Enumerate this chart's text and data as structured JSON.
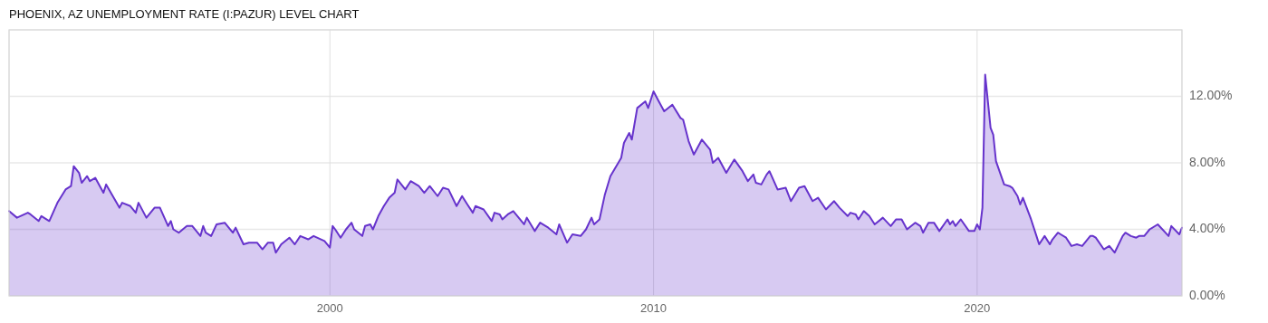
{
  "chart_data": {
    "type": "area",
    "title": "PHOENIX, AZ UNEMPLOYMENT RATE (I:PAZUR) LEVEL CHART",
    "x": [
      "1990-02",
      "1990-05",
      "1990-09",
      "1990-10",
      "1991-01",
      "1991-02",
      "1991-05",
      "1991-08",
      "1991-11",
      "1992-01",
      "1992-02",
      "1992-04",
      "1992-05",
      "1992-07",
      "1992-08",
      "1992-10",
      "1993-01",
      "1993-02",
      "1993-07",
      "1993-08",
      "1993-11",
      "1994-01",
      "1994-02",
      "1994-05",
      "1994-08",
      "1994-10",
      "1995-01",
      "1995-02",
      "1995-03",
      "1995-05",
      "1995-08",
      "1995-10",
      "1996-01",
      "1996-02",
      "1996-03",
      "1996-05",
      "1996-07",
      "1996-10",
      "1997-01",
      "1997-02",
      "1997-05",
      "1997-07",
      "1997-10",
      "1997-12",
      "1998-02",
      "1998-04",
      "1998-05",
      "1998-07",
      "1998-10",
      "1998-12",
      "1999-02",
      "1999-05",
      "1999-07",
      "1999-11",
      "2000-01",
      "2000-02",
      "2000-03",
      "2000-05",
      "2000-07",
      "2000-09",
      "2000-10",
      "2001-01",
      "2001-02",
      "2001-04",
      "2001-05",
      "2001-07",
      "2001-09",
      "2001-11",
      "2002-01",
      "2002-02",
      "2002-04",
      "2002-05",
      "2002-07",
      "2002-10",
      "2002-12",
      "2003-02",
      "2003-05",
      "2003-07",
      "2003-09",
      "2003-12",
      "2004-02",
      "2004-04",
      "2004-06",
      "2004-07",
      "2004-10",
      "2005-01",
      "2005-02",
      "2005-04",
      "2005-05",
      "2005-07",
      "2005-09",
      "2006-01",
      "2006-02",
      "2006-05",
      "2006-07",
      "2006-10",
      "2007-01",
      "2007-02",
      "2007-05",
      "2007-07",
      "2007-10",
      "2007-12",
      "2008-02",
      "2008-03",
      "2008-05",
      "2008-07",
      "2008-09",
      "2009-01",
      "2009-02",
      "2009-04",
      "2009-05",
      "2009-07",
      "2009-10",
      "2009-11",
      "2010-01",
      "2010-03",
      "2010-05",
      "2010-08",
      "2010-11",
      "2010-12",
      "2011-02",
      "2011-04",
      "2011-07",
      "2011-10",
      "2011-11",
      "2012-01",
      "2012-04",
      "2012-07",
      "2012-10",
      "2012-12",
      "2013-02",
      "2013-03",
      "2013-05",
      "2013-07",
      "2013-08",
      "2013-11",
      "2014-02",
      "2014-04",
      "2014-07",
      "2014-09",
      "2014-12",
      "2015-02",
      "2015-05",
      "2015-08",
      "2015-10",
      "2016-01",
      "2016-02",
      "2016-04",
      "2016-05",
      "2016-07",
      "2016-09",
      "2016-11",
      "2017-02",
      "2017-05",
      "2017-07",
      "2017-09",
      "2017-11",
      "2018-02",
      "2018-04",
      "2018-05",
      "2018-07",
      "2018-09",
      "2018-11",
      "2019-02",
      "2019-03",
      "2019-04",
      "2019-05",
      "2019-07",
      "2019-10",
      "2019-12",
      "2020-01",
      "2020-02",
      "2020-03",
      "2020-04",
      "2020-06",
      "2020-07",
      "2020-08",
      "2020-11",
      "2021-01",
      "2021-02",
      "2021-04",
      "2021-05",
      "2021-06",
      "2021-09",
      "2021-11",
      "2021-12",
      "2022-02",
      "2022-04",
      "2022-05",
      "2022-07",
      "2022-08",
      "2022-10",
      "2022-12",
      "2023-02",
      "2023-04",
      "2023-07",
      "2023-08",
      "2023-09",
      "2023-12",
      "2024-02",
      "2024-04",
      "2024-07",
      "2024-08",
      "2024-10",
      "2024-12",
      "2025-01",
      "2025-03",
      "2025-05",
      "2025-08",
      "2025-12",
      "2026-01",
      "2026-04",
      "2026-05"
    ],
    "series": [
      {
        "color": "#6633cc",
        "values": [
          5.1,
          4.7,
          5.0,
          4.9,
          4.5,
          4.8,
          4.5,
          5.6,
          6.4,
          6.6,
          7.8,
          7.4,
          6.8,
          7.2,
          6.9,
          7.1,
          6.2,
          6.7,
          5.3,
          5.6,
          5.4,
          5.0,
          5.6,
          4.7,
          5.3,
          5.3,
          4.2,
          4.5,
          4.0,
          3.8,
          4.2,
          4.2,
          3.6,
          4.2,
          3.8,
          3.6,
          4.3,
          4.4,
          3.8,
          4.1,
          3.1,
          3.2,
          3.2,
          2.8,
          3.2,
          3.2,
          2.6,
          3.1,
          3.5,
          3.1,
          3.6,
          3.4,
          3.6,
          3.3,
          2.9,
          4.2,
          4.0,
          3.5,
          4.0,
          4.4,
          4.0,
          3.6,
          4.2,
          4.3,
          4.0,
          4.8,
          5.4,
          5.9,
          6.2,
          7.0,
          6.6,
          6.4,
          6.9,
          6.6,
          6.2,
          6.6,
          6.0,
          6.5,
          6.4,
          5.4,
          6.0,
          5.5,
          5.0,
          5.4,
          5.2,
          4.5,
          5.0,
          4.9,
          4.6,
          4.9,
          5.1,
          4.3,
          4.7,
          3.9,
          4.4,
          4.1,
          3.7,
          4.3,
          3.2,
          3.7,
          3.6,
          4.0,
          4.7,
          4.3,
          4.6,
          6.1,
          7.2,
          8.3,
          9.2,
          9.8,
          9.4,
          11.3,
          11.7,
          11.3,
          12.3,
          11.7,
          11.1,
          11.5,
          10.7,
          10.6,
          9.3,
          8.5,
          9.4,
          8.8,
          8.0,
          8.3,
          7.4,
          8.2,
          7.5,
          6.9,
          7.3,
          6.8,
          6.7,
          7.3,
          7.5,
          6.4,
          6.5,
          5.7,
          6.5,
          6.6,
          5.7,
          5.9,
          5.2,
          5.7,
          5.3,
          4.8,
          5.0,
          4.9,
          4.6,
          5.1,
          4.8,
          4.3,
          4.7,
          4.2,
          4.6,
          4.6,
          4.0,
          4.4,
          4.2,
          3.8,
          4.4,
          4.4,
          3.9,
          4.6,
          4.3,
          4.5,
          4.2,
          4.6,
          3.9,
          3.9,
          4.3,
          4.0,
          5.3,
          13.3,
          10.1,
          9.7,
          8.1,
          6.7,
          6.6,
          6.5,
          6.0,
          5.5,
          5.9,
          4.6,
          3.6,
          3.1,
          3.6,
          3.1,
          3.4,
          3.8,
          3.7,
          3.5,
          3.0,
          3.1,
          3.0,
          3.6,
          3.6,
          3.5,
          2.8,
          3.0,
          2.6,
          3.6,
          3.8,
          3.6,
          3.5,
          3.6,
          3.6,
          4.0,
          4.3,
          3.6,
          4.2,
          3.7,
          4.1
        ]
      }
    ],
    "xlim": [
      "1990-02",
      "2026-05"
    ],
    "xticks": [
      "2000",
      "2010",
      "2020"
    ],
    "ylim": [
      0,
      16
    ],
    "yticks": [
      {
        "value": 0,
        "label": "0.00%"
      },
      {
        "value": 4,
        "label": "4.00%"
      },
      {
        "value": 8,
        "label": "8.00%"
      },
      {
        "value": 12,
        "label": "12.00%"
      }
    ],
    "grid": true
  }
}
